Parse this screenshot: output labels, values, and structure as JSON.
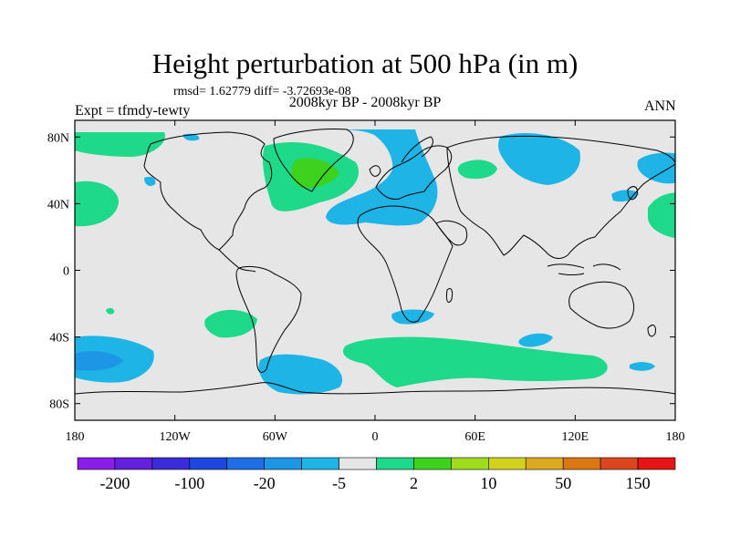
{
  "title": "Height perturbation at 500 hPa (in m)",
  "stats_text": "rmsd= 1.62779 diff= -3.72693e-08",
  "period_text": "2008kyr BP - 2008kyr BP",
  "experiment_text": "Expt = tfmdy-tewty",
  "season_text": "ANN",
  "map": {
    "projection": "cylindrical-equidistant",
    "lon_range": [
      -180,
      180
    ],
    "lat_range": [
      -90,
      90
    ],
    "background_color": "#e6e6e6",
    "lat_tick_labels": [
      "80N",
      "40N",
      "0",
      "40S",
      "80S"
    ],
    "lon_tick_labels": [
      "180",
      "120W",
      "60W",
      "0",
      "60E",
      "120E",
      "180"
    ]
  },
  "colorbar": {
    "colors": [
      "#8a1ee8",
      "#6420dc",
      "#3a2cd9",
      "#1e46e0",
      "#1e6ee6",
      "#1e96e6",
      "#1eb4e6",
      "#e6e6e6",
      "#1ed98a",
      "#3cd21e",
      "#a0dc1e",
      "#d2d21e",
      "#dcaa1e",
      "#dc7814",
      "#dc461e",
      "#e61414"
    ],
    "labels": [
      "-200",
      "-100",
      "-20",
      "-5",
      "2",
      "10",
      "50",
      "150"
    ]
  }
}
